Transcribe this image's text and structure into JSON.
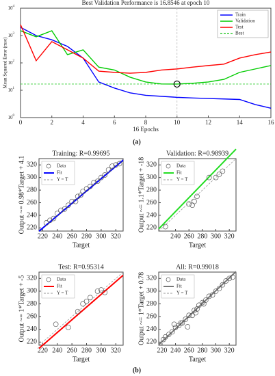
{
  "panel_labels": [
    "(a)",
    "(b)"
  ],
  "chart_data": [
    {
      "type": "line",
      "title": "Best Validation Performance is 16.8546 at epoch 10",
      "xlabel": "16 Epochs",
      "ylabel": "Mean Squared Error (mse)",
      "x": [
        0,
        1,
        2,
        3,
        4,
        5,
        6,
        7,
        8,
        9,
        10,
        11,
        12,
        13,
        14,
        15,
        16
      ],
      "series": [
        {
          "name": "Train",
          "color": "#0000ff",
          "values": [
            2000,
            1000,
            700,
            400,
            150,
            20,
            12,
            8,
            6.5,
            6,
            5.5,
            5.2,
            5,
            4.8,
            4.6,
            3,
            2.2
          ]
        },
        {
          "name": "Validation",
          "color": "#00cc00",
          "values": [
            1500,
            900,
            1500,
            200,
            300,
            70,
            55,
            30,
            20,
            17,
            16.8546,
            18,
            20,
            25,
            45,
            60,
            80
          ]
        },
        {
          "name": "Test",
          "color": "#ff0000",
          "values": [
            2500,
            120,
            600,
            300,
            150,
            50,
            45,
            42,
            45,
            55,
            60,
            70,
            80,
            90,
            150,
            200,
            250
          ]
        }
      ],
      "best": {
        "name": "Best",
        "color": "#33cc33",
        "x": 10,
        "y": 16.8546
      },
      "xlim": [
        0,
        16
      ],
      "xticks": [
        0,
        2,
        4,
        6,
        8,
        10,
        12,
        14,
        16
      ],
      "ylim": [
        1,
        10000
      ],
      "log_y": true,
      "legend": "upper right",
      "yticks": [
        {
          "value": 1,
          "label": "10",
          "exponent": "0"
        },
        {
          "value": 10,
          "label": "10",
          "exponent": "1"
        },
        {
          "value": 100,
          "label": "10",
          "exponent": "2"
        },
        {
          "value": 1000,
          "label": "10",
          "exponent": "3"
        },
        {
          "value": 10000,
          "label": "10",
          "exponent": "4"
        }
      ]
    },
    {
      "type": "regression",
      "title": "Training: R=0.99695",
      "xlabel": "Target",
      "ylabel": "Output ~= 0.98*Target + 4.1",
      "series": [
        {
          "name": "Data",
          "color": "#555555",
          "x": [
            225,
            230,
            235,
            240,
            245,
            250,
            255,
            260,
            265,
            268,
            272,
            275,
            280,
            285,
            290,
            295,
            300,
            305,
            310,
            315,
            320,
            325
          ],
          "values": [
            228,
            232,
            235,
            243,
            248,
            250,
            256,
            262,
            262,
            270,
            272,
            278,
            282,
            286,
            292,
            294,
            300,
            304,
            312,
            318,
            320,
            322
          ]
        },
        {
          "name": "Fit",
          "color": "#0000ff",
          "slope": 0.98,
          "intercept": 4.1
        },
        {
          "name": "Y = T",
          "color": "#999999"
        }
      ],
      "xlim": [
        215,
        330
      ],
      "ylim": [
        215,
        330
      ],
      "xticks": [
        220,
        240,
        260,
        280,
        300,
        320
      ],
      "yticks": [
        220,
        240,
        260,
        280,
        300,
        320
      ]
    },
    {
      "type": "regression",
      "title": "Validation: R=0.98939",
      "xlabel": "Target",
      "ylabel": "Output ~= 1.1*Target + -18",
      "series": [
        {
          "name": "Data",
          "color": "#555555",
          "x": [
            225,
            260,
            265,
            268,
            272,
            290,
            300,
            305,
            310
          ],
          "values": [
            222,
            258,
            256,
            262,
            270,
            300,
            300,
            305,
            310
          ]
        },
        {
          "name": "Fit",
          "color": "#22dd22",
          "slope": 1.1,
          "intercept": -18
        },
        {
          "name": "Y = T",
          "color": "#999999"
        }
      ],
      "xlim": [
        215,
        330
      ],
      "ylim": [
        215,
        330
      ],
      "xticks": [
        240,
        260,
        280,
        300,
        320
      ],
      "yticks": [
        220,
        240,
        260,
        280,
        300,
        320
      ]
    },
    {
      "type": "regression",
      "title": "Test: R=0.95314",
      "xlabel": "Target",
      "ylabel": "Output ~= 1*Target + -5",
      "series": [
        {
          "name": "Data",
          "color": "#555555",
          "x": [
            238,
            255,
            268,
            275,
            280,
            285,
            295,
            300,
            305
          ],
          "values": [
            248,
            243,
            268,
            280,
            284,
            290,
            300,
            302,
            298
          ]
        },
        {
          "name": "Fit",
          "color": "#ff0000",
          "slope": 1,
          "intercept": -5
        },
        {
          "name": "Y = T",
          "color": "#999999"
        }
      ],
      "xlim": [
        215,
        330
      ],
      "ylim": [
        215,
        330
      ],
      "xticks": [
        220,
        240,
        260,
        280,
        300,
        320
      ],
      "yticks": [
        220,
        240,
        260,
        280,
        300,
        320
      ]
    },
    {
      "type": "regression",
      "title": "All: R=0.99018",
      "xlabel": "Target",
      "ylabel": "Output ~= 1*Target + 0.78",
      "series": [
        {
          "name": "Data",
          "color": "#555555",
          "x": [
            222,
            225,
            230,
            235,
            238,
            240,
            245,
            248,
            250,
            255,
            258,
            260,
            265,
            268,
            270,
            272,
            275,
            280,
            282,
            285,
            290,
            295,
            300,
            305,
            310,
            315,
            320,
            325
          ],
          "values": [
            224,
            228,
            232,
            236,
            248,
            243,
            246,
            250,
            250,
            256,
            244,
            262,
            262,
            270,
            266,
            272,
            278,
            282,
            280,
            286,
            292,
            294,
            300,
            304,
            310,
            316,
            320,
            322
          ]
        },
        {
          "name": "Fit",
          "color": "#777777",
          "slope": 1,
          "intercept": 0.78
        },
        {
          "name": "Y = T",
          "color": "#999999"
        }
      ],
      "xlim": [
        215,
        330
      ],
      "ylim": [
        215,
        330
      ],
      "xticks": [
        220,
        240,
        260,
        280,
        300,
        320
      ],
      "yticks": [
        220,
        240,
        260,
        280,
        300,
        320
      ]
    }
  ]
}
